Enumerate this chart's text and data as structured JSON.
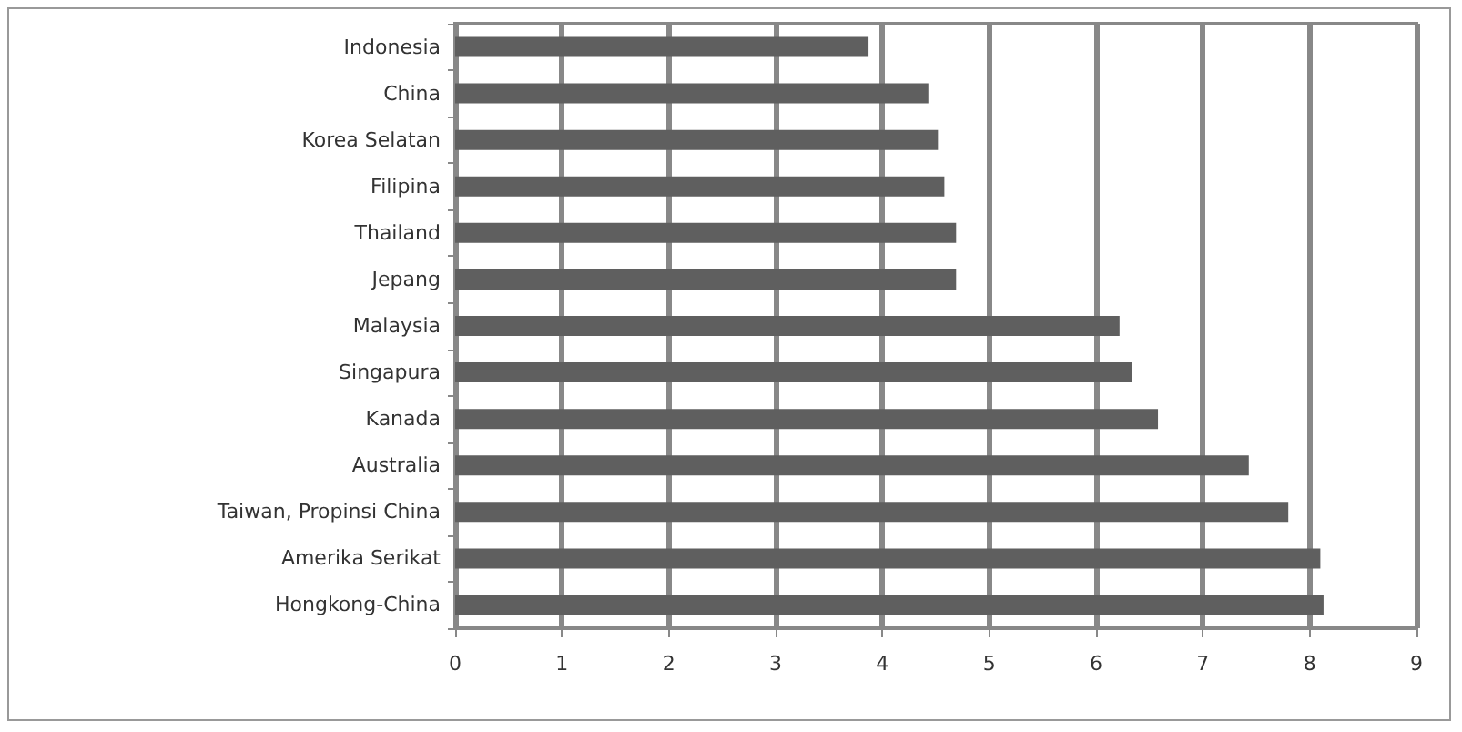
{
  "chart_data": {
    "type": "bar",
    "orientation": "horizontal",
    "categories": [
      "Indonesia",
      "China",
      "Korea Selatan",
      "Filipina",
      "Thailand",
      "Jepang",
      "Malaysia",
      "Singapura",
      "Kanada",
      "Australia",
      "Taiwan, Propinsi China",
      "Amerika Serikat",
      "Hongkong-China"
    ],
    "values": [
      3.87,
      4.43,
      4.52,
      4.58,
      4.69,
      4.69,
      6.22,
      6.34,
      6.58,
      7.43,
      7.8,
      8.1,
      8.13
    ],
    "color": "#5f5f5f",
    "xlim": [
      0,
      9
    ],
    "xticks": [
      0,
      1,
      2,
      3,
      4,
      5,
      6,
      7,
      8,
      9
    ],
    "grid": "x"
  }
}
